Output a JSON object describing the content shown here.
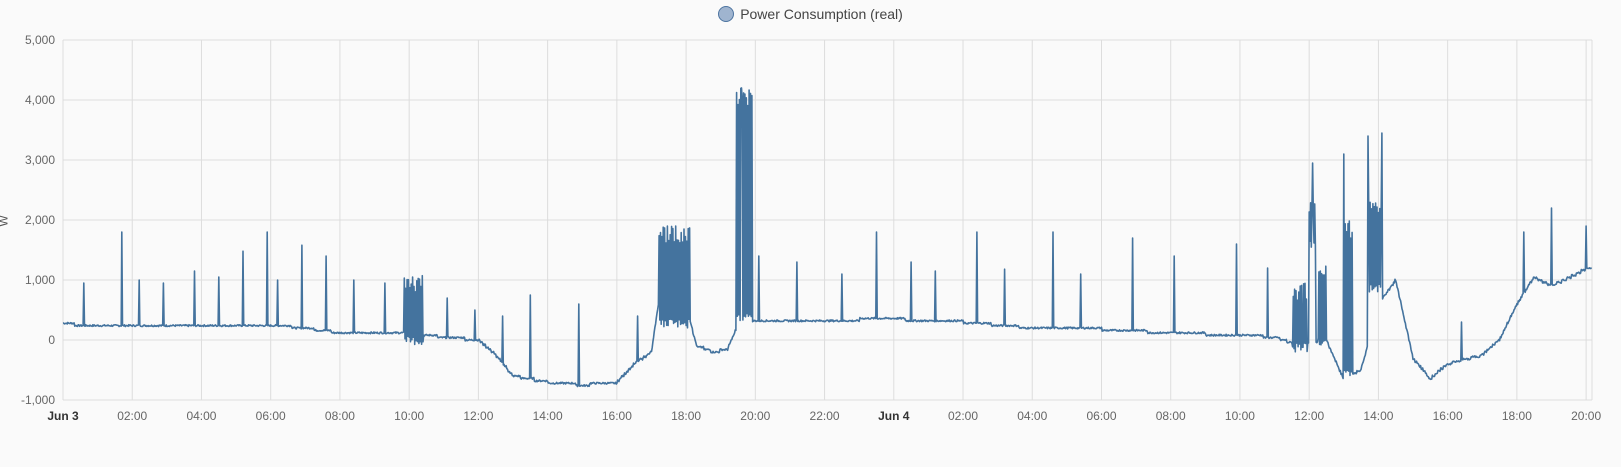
{
  "legend": {
    "label": "Power Consumption (real)"
  },
  "chart_data": {
    "type": "line",
    "title": "",
    "xlabel": "",
    "ylabel": "W",
    "ylim": [
      -1000,
      5000
    ],
    "yticks": [
      {
        "v": 5000,
        "label": "5,000"
      },
      {
        "v": 4000,
        "label": "4,000"
      },
      {
        "v": 3000,
        "label": "3,000"
      },
      {
        "v": 2000,
        "label": "2,000"
      },
      {
        "v": 1000,
        "label": "1,000"
      },
      {
        "v": 0,
        "label": "0"
      },
      {
        "v": -1000,
        "label": "-1,000"
      }
    ],
    "xlim": [
      "Jun 3 00:00",
      "Jun 4 20:10"
    ],
    "xticks": [
      {
        "h": 0,
        "label": "Jun 3",
        "bold": true
      },
      {
        "h": 2,
        "label": "02:00"
      },
      {
        "h": 4,
        "label": "04:00"
      },
      {
        "h": 6,
        "label": "06:00"
      },
      {
        "h": 8,
        "label": "08:00"
      },
      {
        "h": 10,
        "label": "10:00"
      },
      {
        "h": 12,
        "label": "12:00"
      },
      {
        "h": 14,
        "label": "14:00"
      },
      {
        "h": 16,
        "label": "16:00"
      },
      {
        "h": 18,
        "label": "18:00"
      },
      {
        "h": 20,
        "label": "20:00"
      },
      {
        "h": 22,
        "label": "22:00"
      },
      {
        "h": 24,
        "label": "Jun 4",
        "bold": true
      },
      {
        "h": 26,
        "label": "02:00"
      },
      {
        "h": 28,
        "label": "04:00"
      },
      {
        "h": 30,
        "label": "06:00"
      },
      {
        "h": 32,
        "label": "08:00"
      },
      {
        "h": 34,
        "label": "10:00"
      },
      {
        "h": 36,
        "label": "12:00"
      },
      {
        "h": 38,
        "label": "14:00"
      },
      {
        "h": 40,
        "label": "16:00"
      },
      {
        "h": 42,
        "label": "18:00"
      },
      {
        "h": 44,
        "label": "20:00"
      }
    ],
    "grid": true,
    "legend_position": "top-center",
    "series": [
      {
        "name": "Power Consumption (real)",
        "color": "#44739e",
        "baseline": [
          [
            0,
            280
          ],
          [
            1,
            220
          ],
          [
            2,
            230
          ],
          [
            3,
            240
          ],
          [
            4,
            250
          ],
          [
            5,
            260
          ],
          [
            6,
            250
          ],
          [
            7,
            200
          ],
          [
            8,
            120
          ],
          [
            9,
            100
          ],
          [
            10,
            100
          ],
          [
            11,
            50
          ],
          [
            12,
            0
          ],
          [
            12.5,
            -250
          ],
          [
            13,
            -600
          ],
          [
            14,
            -700
          ],
          [
            15,
            -750
          ],
          [
            16,
            -700
          ],
          [
            16.5,
            -400
          ],
          [
            17,
            -200
          ],
          [
            17.2,
            600
          ],
          [
            17.5,
            700
          ],
          [
            18,
            600
          ],
          [
            18.3,
            -100
          ],
          [
            18.8,
            -200
          ],
          [
            19.2,
            -150
          ],
          [
            19.5,
            250
          ],
          [
            20,
            330
          ],
          [
            21,
            300
          ],
          [
            22,
            320
          ],
          [
            23,
            340
          ],
          [
            24,
            350
          ],
          [
            25,
            320
          ],
          [
            26,
            300
          ],
          [
            27,
            250
          ],
          [
            28,
            200
          ],
          [
            29,
            200
          ],
          [
            30,
            180
          ],
          [
            31,
            150
          ],
          [
            32,
            120
          ],
          [
            33,
            100
          ],
          [
            34,
            80
          ],
          [
            35,
            50
          ],
          [
            35.5,
            -50
          ],
          [
            36,
            -50
          ],
          [
            36.5,
            0
          ],
          [
            36.8,
            -400
          ],
          [
            37,
            -650
          ],
          [
            37.5,
            -500
          ],
          [
            38,
            600
          ],
          [
            38.5,
            1000
          ],
          [
            39,
            -300
          ],
          [
            39.5,
            -650
          ],
          [
            40,
            -400
          ],
          [
            41,
            -250
          ],
          [
            41.5,
            0
          ],
          [
            42,
            600
          ],
          [
            42.5,
            1050
          ],
          [
            43,
            900
          ],
          [
            44,
            1180
          ],
          [
            44.2,
            1220
          ]
        ],
        "spikes": [
          [
            0.6,
            950
          ],
          [
            1.7,
            1800
          ],
          [
            2.2,
            1000
          ],
          [
            2.9,
            950
          ],
          [
            3.8,
            1150
          ],
          [
            4.5,
            1050
          ],
          [
            5.2,
            1480
          ],
          [
            5.9,
            1800
          ],
          [
            6.2,
            1000
          ],
          [
            6.9,
            1580
          ],
          [
            7.6,
            1400
          ],
          [
            8.4,
            1000
          ],
          [
            9.3,
            950
          ],
          [
            10.1,
            1050
          ],
          [
            11.1,
            700
          ],
          [
            11.9,
            500
          ],
          [
            12.7,
            400
          ],
          [
            13.5,
            750
          ],
          [
            14.9,
            600
          ],
          [
            16.6,
            400
          ],
          [
            17.7,
            1900
          ],
          [
            19.6,
            4200
          ],
          [
            19.7,
            4100
          ],
          [
            20.1,
            1400
          ],
          [
            21.2,
            1300
          ],
          [
            22.5,
            1100
          ],
          [
            23.5,
            1800
          ],
          [
            24.5,
            1300
          ],
          [
            25.2,
            1150
          ],
          [
            26.4,
            1800
          ],
          [
            27.2,
            1180
          ],
          [
            28.6,
            1800
          ],
          [
            29.4,
            1100
          ],
          [
            30.9,
            1700
          ],
          [
            32.1,
            1400
          ],
          [
            33.9,
            1600
          ],
          [
            34.8,
            1200
          ],
          [
            35.7,
            800
          ],
          [
            36.1,
            2950
          ],
          [
            37.0,
            3100
          ],
          [
            37.7,
            3400
          ],
          [
            38.1,
            3450
          ],
          [
            40.4,
            300
          ],
          [
            42.2,
            1800
          ],
          [
            43.0,
            2200
          ],
          [
            44.0,
            1900
          ],
          [
            44.2,
            1900
          ]
        ],
        "bursts": [
          [
            9.85,
            10.4,
            -80,
            1100
          ],
          [
            17.2,
            18.1,
            200,
            1900
          ],
          [
            19.45,
            19.9,
            300,
            4200
          ],
          [
            35.5,
            35.95,
            -200,
            950
          ],
          [
            36.0,
            36.2,
            1500,
            2300
          ],
          [
            36.25,
            36.5,
            -100,
            1300
          ],
          [
            37.0,
            37.25,
            -650,
            2000
          ],
          [
            37.7,
            38.1,
            800,
            2400
          ]
        ]
      }
    ]
  }
}
